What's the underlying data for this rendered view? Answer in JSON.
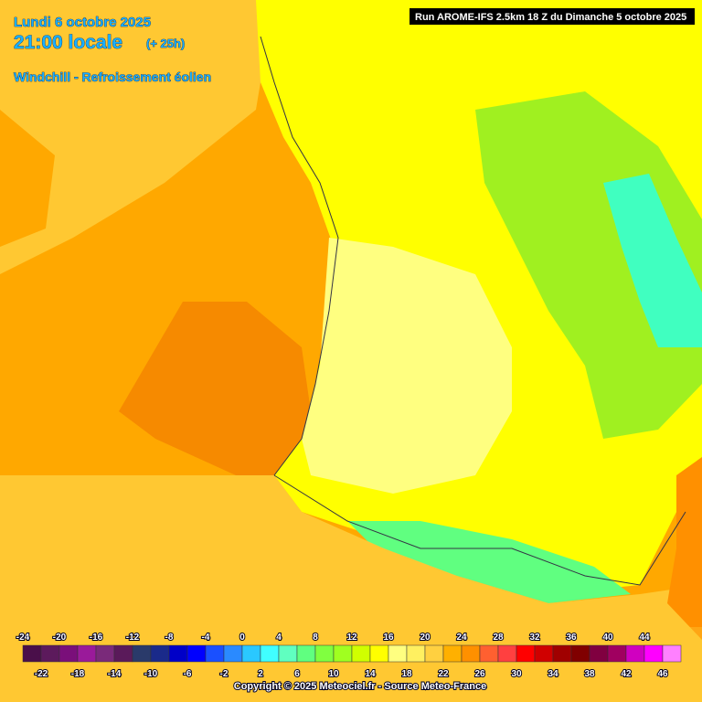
{
  "header": {
    "date": "Lundi 6 octobre 2025",
    "time": "21:00 locale",
    "lead": "(+ 25h)",
    "parameter": "Windchill - Refroissement éolien",
    "run": "Run AROME-IFS 2.5km 18 Z du Dimanche 5 octobre 2025"
  },
  "legend": {
    "values": [
      -24,
      -22,
      -20,
      -18,
      -16,
      -14,
      -12,
      -10,
      -8,
      -6,
      -4,
      -2,
      0,
      2,
      4,
      6,
      8,
      10,
      12,
      14,
      16,
      18,
      20,
      22,
      24,
      26,
      28,
      30,
      32,
      34,
      36,
      38,
      40,
      42,
      44,
      46
    ],
    "colors": [
      "#4a0f4a",
      "#5c1a5c",
      "#7a0f7a",
      "#9a1a9a",
      "#7a2a7a",
      "#5a1a5a",
      "#2a3a6a",
      "#1a2a8a",
      "#0000c8",
      "#0000ff",
      "#1a50ff",
      "#2a8aff",
      "#2ac8ff",
      "#40ffff",
      "#60ffc0",
      "#60ff80",
      "#80ff40",
      "#a0ff20",
      "#d0ff00",
      "#ffff00",
      "#ffff80",
      "#fff060",
      "#ffd040",
      "#ffb000",
      "#ff9000",
      "#ff6030",
      "#ff4040",
      "#ff0000",
      "#d00000",
      "#a00000",
      "#800000",
      "#800040",
      "#a00060",
      "#d000c0",
      "#ff00ff",
      "#ff80ff"
    ]
  },
  "footer": {
    "copyright": "Copyright © 2025 Meteociel.fr - Source Meteo-France"
  }
}
